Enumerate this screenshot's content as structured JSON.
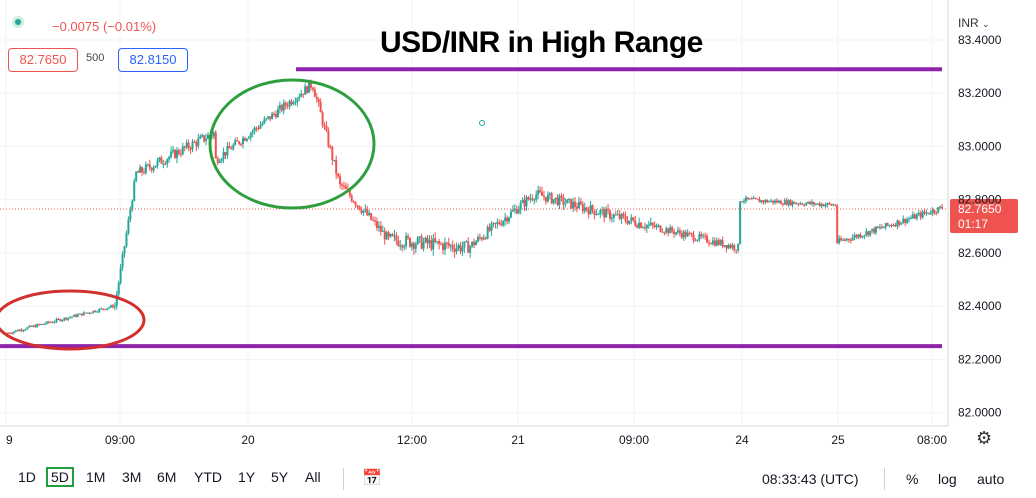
{
  "header": {
    "change": "−0.0075 (−0.01%)",
    "bid": "82.7650",
    "spread": "500",
    "ask": "82.8150",
    "currency": "INR",
    "colors": {
      "up": "#26a69a",
      "down": "#ef5350",
      "ask": "#2962ff"
    }
  },
  "annotations": {
    "title": "USD/INR in High Range",
    "resistance_line": 83.29,
    "support_line": 82.25,
    "line_color": "#8e24aa",
    "circle_low_color": "#d32f2f",
    "circle_high_color": "#2e9e3e"
  },
  "price_label": {
    "value": "82.7650",
    "timer": "01:17",
    "color": "#ef5350"
  },
  "time_axis": {
    "labels": [
      "9",
      "09:00",
      "20",
      "12:00",
      "21",
      "09:00",
      "24",
      "25",
      "08:00"
    ]
  },
  "toolbar": {
    "timeframes": [
      "1D",
      "5D",
      "1M",
      "3M",
      "6M",
      "YTD",
      "1Y",
      "5Y",
      "All"
    ],
    "active": "5D",
    "clock": "08:33:43 (UTC)",
    "percent": "%",
    "log": "log",
    "auto": "auto"
  },
  "chart_data": {
    "type": "candlestick",
    "title": "USD/INR in High Range",
    "ylabel": "INR",
    "ylim": [
      81.95,
      83.52
    ],
    "y_ticks": [
      "83.4000",
      "83.2000",
      "83.0000",
      "82.8000",
      "82.6000",
      "82.4000",
      "82.2000",
      "82.0000"
    ],
    "x_ticks": [
      "9",
      "09:00",
      "20",
      "12:00",
      "21",
      "09:00",
      "24",
      "25",
      "08:00"
    ],
    "grid": true,
    "last_price": 82.765,
    "segments": [
      {
        "from": 82.3,
        "to": 82.4,
        "n": 55,
        "noise": 0.012
      },
      {
        "from": 82.4,
        "to": 82.9,
        "n": 12,
        "noise": 0.03
      },
      {
        "from": 82.9,
        "to": 83.05,
        "n": 40,
        "noise": 0.04
      },
      {
        "from": 82.95,
        "to": 83.23,
        "n": 50,
        "noise": 0.035
      },
      {
        "from": 83.23,
        "to": 82.85,
        "n": 15,
        "noise": 0.04
      },
      {
        "from": 82.85,
        "to": 82.65,
        "n": 25,
        "noise": 0.04
      },
      {
        "from": 82.65,
        "to": 82.62,
        "n": 40,
        "noise": 0.05
      },
      {
        "from": 82.62,
        "to": 82.82,
        "n": 35,
        "noise": 0.04
      },
      {
        "from": 82.82,
        "to": 82.7,
        "n": 60,
        "noise": 0.04
      },
      {
        "from": 82.7,
        "to": 82.62,
        "n": 45,
        "noise": 0.03
      },
      {
        "from": 82.8,
        "to": 82.78,
        "n": 50,
        "noise": 0.02
      },
      {
        "from": 82.64,
        "to": 82.77,
        "n": 55,
        "noise": 0.025
      }
    ]
  }
}
